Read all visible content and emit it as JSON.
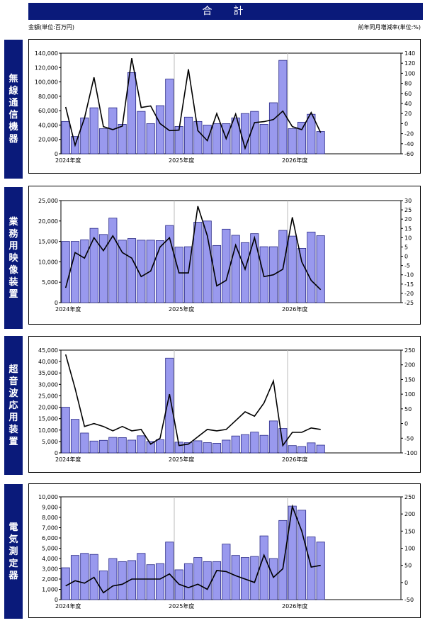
{
  "header": {
    "title": "合　計",
    "unit_left": "金額(単位:百万円)",
    "unit_right": "前年同月増減率(単位:%)"
  },
  "colors": {
    "bar_fill": "#9999ee",
    "bar_stroke": "#2a2a88",
    "line": "#000000",
    "side_label_bg": "#0a1a7a"
  },
  "panels": [
    {
      "label": "無線通信機器"
    },
    {
      "label": "業務用映像装置"
    },
    {
      "label": "超音波応用装置"
    },
    {
      "label": "電気測定器"
    }
  ],
  "chart_data": [
    {
      "type": "bar",
      "x_labels": [
        "2024年度",
        "2025年度",
        "2026年度"
      ],
      "y_left": {
        "ticks": [
          "0",
          "20,000",
          "40,000",
          "60,000",
          "80,000",
          "100,000",
          "120,000",
          "140,000"
        ],
        "min": 0,
        "max": 140000
      },
      "y_right": {
        "ticks": [
          "-60",
          "-40",
          "-20",
          "0",
          "20",
          "40",
          "60",
          "80",
          "100",
          "120",
          "140"
        ],
        "min": -60,
        "max": 140
      },
      "series": [
        {
          "values": [
            45000,
            24000,
            50000,
            64000,
            35000,
            64000,
            41000,
            113000,
            59000,
            42000,
            67000,
            104000,
            38000,
            51000,
            45000,
            40000,
            42000,
            42000,
            50000,
            56000,
            59000,
            41000,
            71000,
            130000,
            35000,
            44000,
            55000,
            31000
          ]
        },
        {
          "values": [
            33,
            -43,
            11,
            92,
            -6,
            -12,
            -5,
            130,
            32,
            35,
            0,
            -14,
            -13,
            108,
            -14,
            -34,
            20,
            -30,
            19,
            -49,
            2,
            4,
            8,
            25,
            -6,
            -12,
            22,
            -18
          ]
        }
      ]
    },
    {
      "type": "bar",
      "x_labels": [
        "2024年度",
        "2025年度",
        "2026年度"
      ],
      "y_left": {
        "ticks": [
          "0",
          "5,000",
          "10,000",
          "15,000",
          "20,000",
          "25,000"
        ],
        "min": 0,
        "max": 25000
      },
      "y_right": {
        "ticks": [
          "-25",
          "-20",
          "-15",
          "-10",
          "-5",
          "0",
          "5",
          "10",
          "15",
          "20",
          "25",
          "30"
        ],
        "min": -25,
        "max": 30
      },
      "series": [
        {
          "values": [
            15000,
            15000,
            15400,
            18200,
            16700,
            20700,
            15300,
            15700,
            15300,
            15300,
            15200,
            18900,
            13600,
            13700,
            19700,
            20000,
            14000,
            18000,
            16500,
            14700,
            16900,
            13700,
            13700,
            17700,
            16300,
            13300,
            17300,
            16400
          ]
        },
        {
          "values": [
            -17,
            2,
            -1,
            10,
            3,
            11,
            2,
            -1,
            -11,
            -8,
            5,
            10,
            -9,
            -9,
            27,
            11,
            -16,
            -13,
            6,
            -7,
            10,
            -11,
            -10,
            -7,
            21,
            -3,
            -13,
            -18
          ]
        }
      ]
    },
    {
      "type": "bar",
      "x_labels": [
        "2024年度",
        "2025年度",
        "2026年度"
      ],
      "y_left": {
        "ticks": [
          "0",
          "5,000",
          "10,000",
          "15,000",
          "20,000",
          "25,000",
          "30,000",
          "35,000",
          "40,000",
          "45,000"
        ],
        "min": 0,
        "max": 45000
      },
      "y_right": {
        "ticks": [
          "-100",
          "-50",
          "0",
          "50",
          "100",
          "150",
          "200",
          "250"
        ],
        "min": -100,
        "max": 250
      },
      "series": [
        {
          "values": [
            20000,
            14700,
            8700,
            5200,
            5500,
            6800,
            6700,
            5600,
            7500,
            5000,
            5800,
            41500,
            4700,
            4500,
            5300,
            4500,
            4200,
            5600,
            7400,
            8000,
            9100,
            7700,
            14000,
            10700,
            3200,
            2800,
            4400,
            3400
          ]
        },
        {
          "values": [
            235,
            120,
            -10,
            0,
            -10,
            -25,
            -10,
            -25,
            -20,
            -70,
            -50,
            100,
            -75,
            -70,
            -45,
            -20,
            -25,
            -20,
            10,
            40,
            25,
            70,
            145,
            -75,
            -30,
            -30,
            -15,
            -20
          ]
        }
      ]
    },
    {
      "type": "bar",
      "x_labels": [
        "2024年度",
        "2025年度",
        "2026年度"
      ],
      "y_left": {
        "ticks": [
          "0",
          "1,000",
          "2,000",
          "3,000",
          "4,000",
          "5,000",
          "6,000",
          "7,000",
          "8,000",
          "9,000",
          "10,000"
        ],
        "min": 0,
        "max": 10000
      },
      "y_right": {
        "ticks": [
          "-50",
          "0",
          "50",
          "100",
          "150",
          "200",
          "250"
        ],
        "min": -50,
        "max": 250
      },
      "series": [
        {
          "values": [
            3100,
            4300,
            4500,
            4400,
            2800,
            4000,
            3700,
            3800,
            4500,
            3400,
            3500,
            5600,
            2900,
            3500,
            4100,
            3700,
            3700,
            5400,
            4300,
            4100,
            4200,
            6200,
            4000,
            7700,
            9100,
            8700,
            6100,
            5600
          ]
        },
        {
          "values": [
            -10,
            5,
            -2,
            15,
            -30,
            -10,
            -5,
            10,
            10,
            10,
            10,
            25,
            -5,
            -15,
            -5,
            -20,
            35,
            32,
            20,
            10,
            0,
            80,
            15,
            40,
            222,
            150,
            45,
            50
          ]
        }
      ]
    }
  ]
}
